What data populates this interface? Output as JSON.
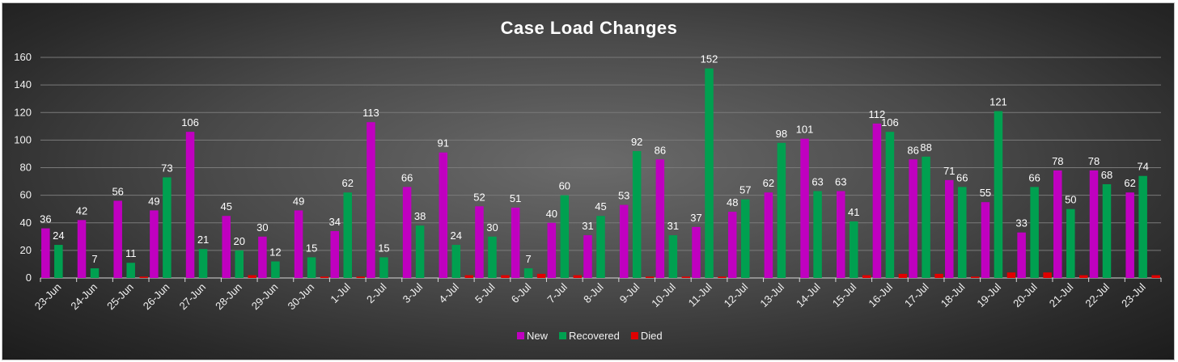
{
  "chart_data": {
    "type": "bar",
    "title": "Case Load Changes",
    "xlabel": "",
    "ylabel": "",
    "ylim": [
      0,
      160
    ],
    "yticks": [
      0,
      20,
      40,
      60,
      80,
      100,
      120,
      140,
      160
    ],
    "grid": true,
    "legend_position": "bottom",
    "categories": [
      "23-Jun",
      "24-Jun",
      "25-Jun",
      "26-Jun",
      "27-Jun",
      "28-Jun",
      "29-Jun",
      "30-Jun",
      "1-Jul",
      "2-Jul",
      "3-Jul",
      "4-Jul",
      "5-Jul",
      "6-Jul",
      "7-Jul",
      "8-Jul",
      "9-Jul",
      "10-Jul",
      "11-Jul",
      "12-Jul",
      "13-Jul",
      "14-Jul",
      "15-Jul",
      "16-Jul",
      "17-Jul",
      "18-Jul",
      "19-Jul",
      "20-Jul",
      "21-Jul",
      "22-Jul",
      "23-Jul"
    ],
    "series": [
      {
        "name": "New",
        "color": "#c000c0",
        "show_labels": true,
        "values": [
          36,
          42,
          56,
          49,
          106,
          45,
          30,
          49,
          34,
          113,
          66,
          91,
          52,
          51,
          40,
          31,
          53,
          86,
          37,
          48,
          62,
          101,
          63,
          112,
          86,
          71,
          55,
          33,
          78,
          78,
          62
        ]
      },
      {
        "name": "Recovered",
        "color": "#00a050",
        "show_labels": true,
        "values": [
          24,
          7,
          11,
          73,
          21,
          20,
          12,
          15,
          62,
          15,
          38,
          24,
          30,
          7,
          60,
          45,
          92,
          31,
          152,
          57,
          98,
          63,
          41,
          106,
          88,
          66,
          121,
          66,
          50,
          68,
          74
        ]
      },
      {
        "name": "Died",
        "color": "#e00000",
        "show_labels": false,
        "values": [
          0,
          0,
          1,
          0,
          0,
          2,
          0,
          1,
          1,
          0,
          0,
          2,
          2,
          3,
          2,
          0,
          1,
          1,
          1,
          0,
          0,
          0,
          2,
          3,
          3,
          1,
          4,
          4,
          2,
          0,
          2
        ]
      }
    ]
  }
}
